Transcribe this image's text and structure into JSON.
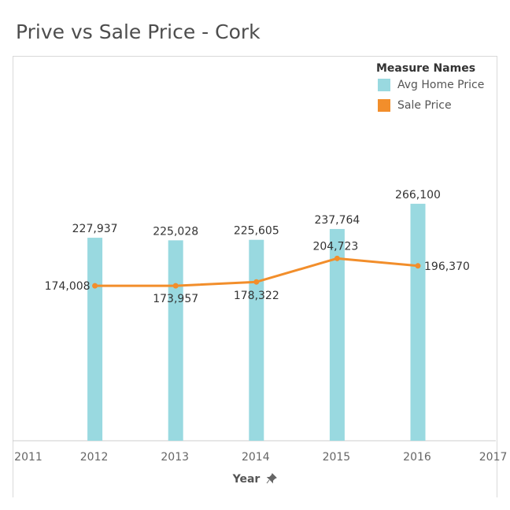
{
  "title": "Prive vs Sale Price - Cork",
  "legend": {
    "title": "Measure Names",
    "items": [
      {
        "label": "Avg Home Price",
        "color": "#99d9e0"
      },
      {
        "label": "Sale Price",
        "color": "#f28e2b"
      }
    ]
  },
  "xaxis": {
    "label": "Year",
    "pin_icon": "pin-icon"
  },
  "chart_data": {
    "type": "bar",
    "title": "Prive vs Sale Price - Cork",
    "xlabel": "Year",
    "ylabel": "",
    "x_ticks": [
      "2011",
      "2012",
      "2013",
      "2014",
      "2015",
      "2016",
      "2017"
    ],
    "categories": [
      "2012",
      "2013",
      "2014",
      "2015",
      "2016"
    ],
    "ylim": [
      0,
      300000
    ],
    "grid": false,
    "legend_position": "top-right",
    "series": [
      {
        "name": "Avg Home Price",
        "type": "bar",
        "color": "#99d9e0",
        "values": [
          227937,
          225028,
          225605,
          237764,
          266100
        ],
        "labels": [
          "227,937",
          "225,028",
          "225,605",
          "237,764",
          "266,100"
        ]
      },
      {
        "name": "Sale Price",
        "type": "line",
        "color": "#f28e2b",
        "values": [
          174008,
          173957,
          178322,
          204723,
          196370
        ],
        "labels": [
          "174,008",
          "173,957",
          "178,322",
          "204,723",
          "196,370"
        ]
      }
    ]
  }
}
